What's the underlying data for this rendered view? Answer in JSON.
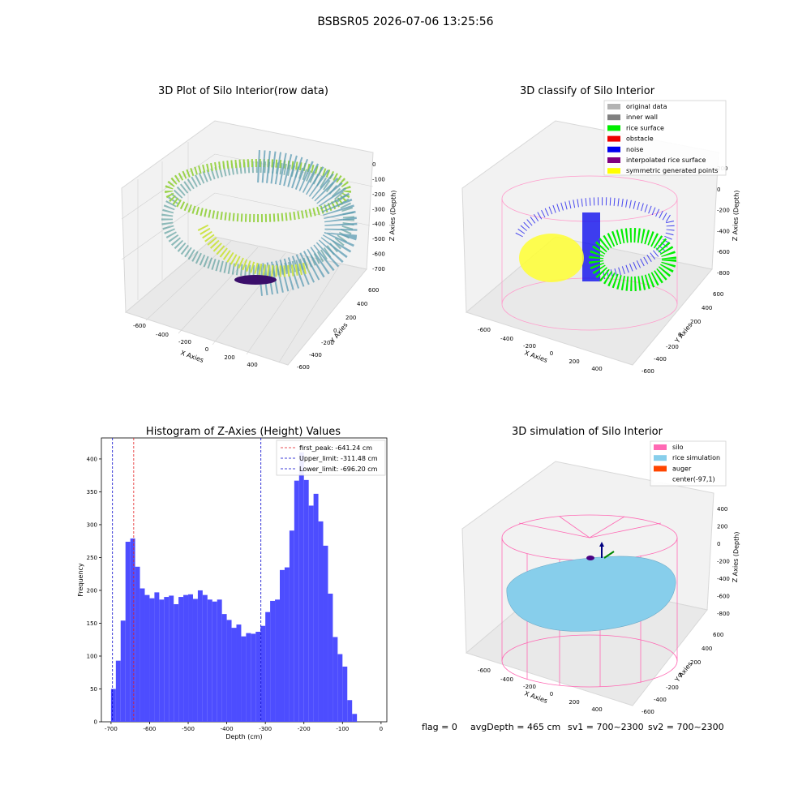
{
  "figure": {
    "suptitle": "BSBSR05 2026-07-06 13:25:56",
    "footer": {
      "flag": "flag = 0",
      "avg_depth": "avgDepth = 465 cm",
      "sv1": "sv1 = 700~2300",
      "sv2": "sv2 = 700~2300"
    }
  },
  "panels": {
    "raw": {
      "title": "3D Plot of Silo Interior(row data)",
      "xlabel": "X Axies",
      "ylabel": "Y Axies",
      "zlabel": "Z Axies (Depth)",
      "xticks": [
        "-600",
        "-400",
        "-200",
        "0",
        "200",
        "400"
      ],
      "yticks": [
        "600",
        "400",
        "200",
        "0",
        "-200",
        "-400",
        "-600"
      ],
      "zticks": [
        "0",
        "-100",
        "-200",
        "-300",
        "-400",
        "-500",
        "-600",
        "-700"
      ]
    },
    "classify": {
      "title": "3D classify of Silo Interior",
      "xlabel": "X Axies",
      "ylabel": "Y Axies",
      "zlabel": "Z Axies (Depth)",
      "xticks": [
        "-600",
        "-400",
        "-200",
        "0",
        "200",
        "400"
      ],
      "yticks": [
        "600",
        "400",
        "200",
        "0",
        "-200",
        "-400",
        "-600"
      ],
      "zticks": [
        "200",
        "0",
        "-200",
        "-400",
        "-600",
        "-800"
      ],
      "legend": [
        {
          "label": "original data",
          "color": "#b3b3b3"
        },
        {
          "label": "inner wall",
          "color": "#808080"
        },
        {
          "label": "rice surface",
          "color": "#00ee00"
        },
        {
          "label": "obstacle",
          "color": "#ee0000"
        },
        {
          "label": "noise",
          "color": "#0000ee"
        },
        {
          "label": "interpolated rice surface",
          "color": "#800080"
        },
        {
          "label": "symmetric generated points",
          "color": "#ffff00"
        }
      ]
    },
    "simulation": {
      "title": "3D simulation of Silo Interior",
      "xlabel": "X Axies",
      "ylabel": "Y Axies",
      "zlabel": "Z Axies (Depth)",
      "xticks": [
        "-600",
        "-400",
        "-200",
        "0",
        "200",
        "400"
      ],
      "yticks": [
        "600",
        "400",
        "200",
        "0",
        "-200",
        "-400",
        "-600"
      ],
      "zticks": [
        "400",
        "200",
        "0",
        "-200",
        "-400",
        "-600",
        "-800"
      ],
      "legend": [
        {
          "label": "silo",
          "color": "#ff69b4"
        },
        {
          "label": "rice simulation",
          "color": "#87ceeb"
        },
        {
          "label": "auger",
          "color": "#ff4500"
        },
        {
          "label": "center(-97,1)",
          "color": "#ffffff"
        }
      ]
    }
  },
  "chart_data": {
    "type": "bar",
    "title": "Histogram of Z-Axies (Height) Values",
    "xlabel": "Depth (cm)",
    "ylabel": "Frequency",
    "xlim": [
      -725,
      15
    ],
    "ylim": [
      0,
      432
    ],
    "xticks": [
      -700,
      -600,
      -500,
      -400,
      -300,
      -200,
      -100,
      0
    ],
    "yticks": [
      0,
      50,
      100,
      150,
      200,
      250,
      300,
      350,
      400
    ],
    "bar_color": "#4d4dff",
    "bin_start": -700,
    "bin_width": 12.5,
    "values": [
      50,
      93,
      154,
      274,
      279,
      236,
      203,
      193,
      188,
      197,
      186,
      190,
      192,
      179,
      190,
      193,
      194,
      187,
      200,
      193,
      186,
      183,
      186,
      164,
      155,
      143,
      148,
      130,
      135,
      134,
      137,
      146,
      167,
      184,
      186,
      231,
      235,
      291,
      367,
      410,
      368,
      329,
      347,
      305,
      268,
      195,
      129,
      103,
      84,
      33,
      12
    ],
    "vlines": [
      {
        "label": "first_peak: -641.24 cm",
        "x": -641.24,
        "color": "#e31a1c"
      },
      {
        "label": "Upper_limit: -311.48 cm",
        "x": -311.48,
        "color": "#0000cc"
      },
      {
        "label": "Lower_limit: -696.20 cm",
        "x": -696.2,
        "color": "#0000cc"
      }
    ]
  }
}
